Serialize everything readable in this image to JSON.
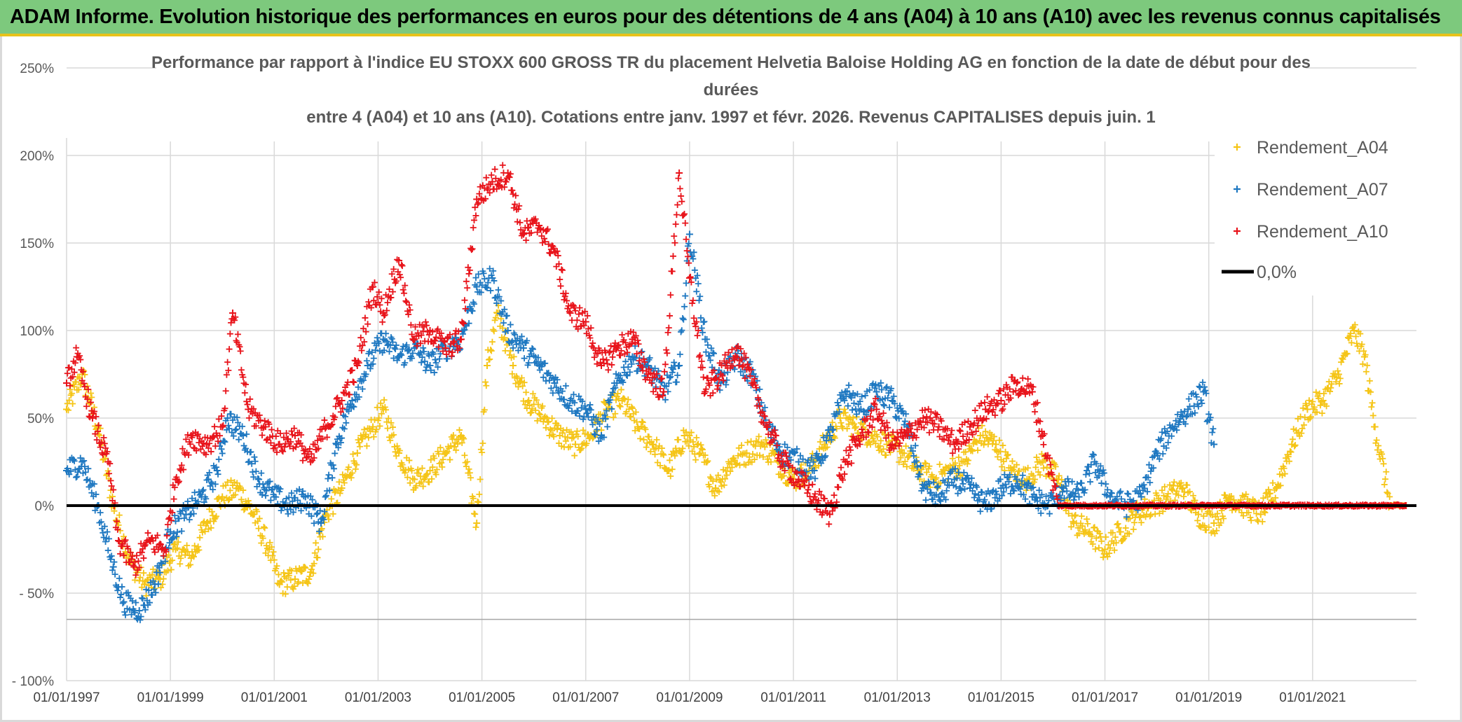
{
  "banner": {
    "title": "ADAM Informe. Evolution historique des performances en euros pour des détentions de 4 ans (A04) à 10 ans (A10) avec les revenus connus capitalisés"
  },
  "colors": {
    "banner_bg": "#7dc97d",
    "banner_border": "#e8c21a",
    "A04": "#f5c518",
    "A07": "#1f78c1",
    "A10": "#e8141b",
    "zero": "#000000",
    "grid": "#d9d9d9"
  },
  "chart_data": {
    "type": "scatter",
    "title_lines": [
      "Performance par rapport à l'indice EU STOXX 600 GROSS TR  du placement Helvetia Baloise Holding AG en fonction de la date de début pour des",
      "durées",
      "entre 4 (A04) et 10 ans (A10). Cotations entre janv. 1997 et févr. 2026. Revenus CAPITALISES depuis juin. 1"
    ],
    "ylim": [
      -100,
      250
    ],
    "yticks": [
      250,
      200,
      150,
      100,
      50,
      0,
      -50,
      -100
    ],
    "ytick_labels": [
      "250%",
      "200%",
      "150%",
      "100%",
      "50%",
      "0%",
      "- 50%",
      "- 100%"
    ],
    "xlim": [
      1997.0,
      2023.0
    ],
    "xticks": [
      1997,
      1999,
      2001,
      2003,
      2005,
      2007,
      2009,
      2011,
      2013,
      2015,
      2017,
      2019,
      2021
    ],
    "xtick_labels": [
      "01/01/1997",
      "01/01/1999",
      "01/01/2001",
      "01/01/2003",
      "01/01/2005",
      "01/01/2007",
      "01/01/2009",
      "01/01/2011",
      "01/01/2013",
      "01/01/2015",
      "01/01/2017",
      "01/01/2019",
      "01/01/2021"
    ],
    "legend_position": "top-right",
    "grid": true,
    "series": [
      {
        "name": "Rendement_A04",
        "points": [
          [
            1997.0,
            55
          ],
          [
            1997.3,
            75
          ],
          [
            1997.6,
            45
          ],
          [
            1997.9,
            0
          ],
          [
            1998.2,
            -30
          ],
          [
            1998.5,
            -45
          ],
          [
            1998.8,
            -42
          ],
          [
            1999.1,
            -25
          ],
          [
            1999.4,
            -30
          ],
          [
            1999.7,
            -10
          ],
          [
            2000.0,
            5
          ],
          [
            2000.3,
            10
          ],
          [
            2000.6,
            -5
          ],
          [
            2000.9,
            -25
          ],
          [
            2001.1,
            -45
          ],
          [
            2001.4,
            -42
          ],
          [
            2001.7,
            -38
          ],
          [
            2002.0,
            -5
          ],
          [
            2002.3,
            10
          ],
          [
            2002.6,
            30
          ],
          [
            2002.9,
            45
          ],
          [
            2003.1,
            55
          ],
          [
            2003.4,
            30
          ],
          [
            2003.7,
            15
          ],
          [
            2004.0,
            20
          ],
          [
            2004.3,
            30
          ],
          [
            2004.6,
            40
          ],
          [
            2004.9,
            -10
          ],
          [
            2005.1,
            80
          ],
          [
            2005.3,
            110
          ],
          [
            2005.6,
            80
          ],
          [
            2005.9,
            60
          ],
          [
            2006.2,
            50
          ],
          [
            2006.5,
            40
          ],
          [
            2006.8,
            35
          ],
          [
            2007.1,
            40
          ],
          [
            2007.4,
            55
          ],
          [
            2007.7,
            60
          ],
          [
            2008.0,
            45
          ],
          [
            2008.3,
            35
          ],
          [
            2008.6,
            20
          ],
          [
            2008.9,
            40
          ],
          [
            2009.2,
            30
          ],
          [
            2009.5,
            10
          ],
          [
            2009.8,
            25
          ],
          [
            2010.1,
            30
          ],
          [
            2010.4,
            35
          ],
          [
            2010.7,
            25
          ],
          [
            2011.0,
            15
          ],
          [
            2011.3,
            20
          ],
          [
            2011.6,
            35
          ],
          [
            2011.9,
            50
          ],
          [
            2012.2,
            45
          ],
          [
            2012.5,
            40
          ],
          [
            2012.8,
            35
          ],
          [
            2013.1,
            30
          ],
          [
            2013.4,
            20
          ],
          [
            2013.7,
            15
          ],
          [
            2014.0,
            20
          ],
          [
            2014.3,
            25
          ],
          [
            2014.6,
            40
          ],
          [
            2014.9,
            35
          ],
          [
            2015.2,
            20
          ],
          [
            2015.5,
            15
          ],
          [
            2015.8,
            25
          ],
          [
            2016.1,
            15
          ],
          [
            2016.4,
            -10
          ],
          [
            2016.7,
            -15
          ],
          [
            2017.0,
            -25
          ],
          [
            2017.3,
            -15
          ],
          [
            2017.6,
            -5
          ],
          [
            2017.9,
            0
          ],
          [
            2018.2,
            5
          ],
          [
            2018.5,
            10
          ],
          [
            2018.8,
            -5
          ],
          [
            2019.1,
            -10
          ],
          [
            2019.4,
            5
          ],
          [
            2019.7,
            0
          ],
          [
            2020.0,
            -5
          ],
          [
            2020.3,
            10
          ],
          [
            2020.6,
            35
          ],
          [
            2020.9,
            55
          ],
          [
            2021.2,
            60
          ],
          [
            2021.5,
            75
          ],
          [
            2021.8,
            100
          ],
          [
            2022.0,
            85
          ],
          [
            2022.2,
            45
          ],
          [
            2022.5,
            0
          ],
          [
            2022.8,
            0
          ]
        ]
      },
      {
        "name": "Rendement_A07",
        "points": [
          [
            1997.0,
            20
          ],
          [
            1997.3,
            25
          ],
          [
            1997.6,
            0
          ],
          [
            1997.9,
            -35
          ],
          [
            1998.1,
            -55
          ],
          [
            1998.4,
            -60
          ],
          [
            1998.7,
            -45
          ],
          [
            1999.0,
            -15
          ],
          [
            1999.3,
            -5
          ],
          [
            1999.6,
            5
          ],
          [
            1999.9,
            20
          ],
          [
            2000.1,
            50
          ],
          [
            2000.4,
            40
          ],
          [
            2000.7,
            15
          ],
          [
            2001.0,
            5
          ],
          [
            2001.3,
            0
          ],
          [
            2001.6,
            5
          ],
          [
            2001.9,
            -10
          ],
          [
            2002.2,
            35
          ],
          [
            2002.5,
            60
          ],
          [
            2002.8,
            80
          ],
          [
            2003.1,
            95
          ],
          [
            2003.4,
            85
          ],
          [
            2003.7,
            90
          ],
          [
            2004.0,
            80
          ],
          [
            2004.3,
            90
          ],
          [
            2004.6,
            95
          ],
          [
            2004.9,
            125
          ],
          [
            2005.2,
            130
          ],
          [
            2005.5,
            100
          ],
          [
            2005.8,
            90
          ],
          [
            2006.1,
            80
          ],
          [
            2006.4,
            70
          ],
          [
            2006.7,
            60
          ],
          [
            2007.0,
            55
          ],
          [
            2007.3,
            40
          ],
          [
            2007.6,
            70
          ],
          [
            2007.9,
            85
          ],
          [
            2008.2,
            80
          ],
          [
            2008.5,
            65
          ],
          [
            2008.8,
            80
          ],
          [
            2009.0,
            155
          ],
          [
            2009.3,
            95
          ],
          [
            2009.6,
            70
          ],
          [
            2009.9,
            85
          ],
          [
            2010.2,
            75
          ],
          [
            2010.5,
            45
          ],
          [
            2010.8,
            30
          ],
          [
            2011.1,
            25
          ],
          [
            2011.4,
            20
          ],
          [
            2011.7,
            40
          ],
          [
            2012.0,
            65
          ],
          [
            2012.3,
            55
          ],
          [
            2012.6,
            65
          ],
          [
            2012.9,
            60
          ],
          [
            2013.2,
            45
          ],
          [
            2013.5,
            10
          ],
          [
            2013.8,
            5
          ],
          [
            2014.1,
            15
          ],
          [
            2014.4,
            10
          ],
          [
            2014.7,
            0
          ],
          [
            2015.0,
            10
          ],
          [
            2015.3,
            15
          ],
          [
            2015.6,
            5
          ],
          [
            2015.9,
            0
          ],
          [
            2016.2,
            10
          ],
          [
            2016.5,
            5
          ],
          [
            2016.8,
            25
          ],
          [
            2017.1,
            5
          ],
          [
            2017.4,
            0
          ],
          [
            2017.7,
            5
          ],
          [
            2018.0,
            30
          ],
          [
            2018.3,
            45
          ],
          [
            2018.6,
            55
          ],
          [
            2018.9,
            65
          ],
          [
            2019.1,
            35
          ]
        ]
      },
      {
        "name": "Rendement_A10",
        "points": [
          [
            1997.0,
            70
          ],
          [
            1997.2,
            85
          ],
          [
            1997.5,
            50
          ],
          [
            1997.8,
            25
          ],
          [
            1998.0,
            -20
          ],
          [
            1998.3,
            -35
          ],
          [
            1998.6,
            -20
          ],
          [
            1998.9,
            -25
          ],
          [
            1999.1,
            15
          ],
          [
            1999.4,
            40
          ],
          [
            1999.7,
            35
          ],
          [
            2000.0,
            45
          ],
          [
            2000.2,
            110
          ],
          [
            2000.5,
            55
          ],
          [
            2000.8,
            45
          ],
          [
            2001.1,
            35
          ],
          [
            2001.4,
            40
          ],
          [
            2001.7,
            25
          ],
          [
            2002.0,
            45
          ],
          [
            2002.3,
            60
          ],
          [
            2002.6,
            80
          ],
          [
            2002.9,
            125
          ],
          [
            2003.1,
            110
          ],
          [
            2003.4,
            140
          ],
          [
            2003.7,
            95
          ],
          [
            2004.0,
            100
          ],
          [
            2004.3,
            90
          ],
          [
            2004.6,
            95
          ],
          [
            2004.9,
            175
          ],
          [
            2005.2,
            185
          ],
          [
            2005.5,
            190
          ],
          [
            2005.8,
            155
          ],
          [
            2006.1,
            160
          ],
          [
            2006.4,
            145
          ],
          [
            2006.7,
            110
          ],
          [
            2007.0,
            105
          ],
          [
            2007.3,
            80
          ],
          [
            2007.6,
            90
          ],
          [
            2007.9,
            95
          ],
          [
            2008.2,
            75
          ],
          [
            2008.5,
            65
          ],
          [
            2008.8,
            190
          ],
          [
            2009.0,
            130
          ],
          [
            2009.3,
            65
          ],
          [
            2009.6,
            75
          ],
          [
            2009.9,
            90
          ],
          [
            2010.2,
            70
          ],
          [
            2010.5,
            45
          ],
          [
            2010.8,
            25
          ],
          [
            2011.1,
            15
          ],
          [
            2011.4,
            5
          ],
          [
            2011.7,
            -5
          ],
          [
            2012.0,
            25
          ],
          [
            2012.3,
            40
          ],
          [
            2012.6,
            55
          ],
          [
            2012.9,
            35
          ],
          [
            2013.2,
            40
          ],
          [
            2013.5,
            50
          ],
          [
            2013.8,
            45
          ],
          [
            2014.1,
            35
          ],
          [
            2014.4,
            45
          ],
          [
            2014.7,
            55
          ],
          [
            2015.0,
            60
          ],
          [
            2015.3,
            70
          ],
          [
            2015.6,
            65
          ],
          [
            2015.8,
            40
          ],
          [
            2016.1,
            0
          ],
          [
            2017.0,
            0
          ],
          [
            2018.0,
            0
          ],
          [
            2019.0,
            0
          ],
          [
            2020.0,
            0
          ],
          [
            2021.0,
            0
          ],
          [
            2022.0,
            0
          ],
          [
            2022.8,
            0
          ]
        ]
      }
    ],
    "reference_line": {
      "name": "0,0%",
      "y": 0
    },
    "legend": [
      "Rendement_A04",
      "Rendement_A07",
      "Rendement_A10",
      "0,0%"
    ]
  }
}
